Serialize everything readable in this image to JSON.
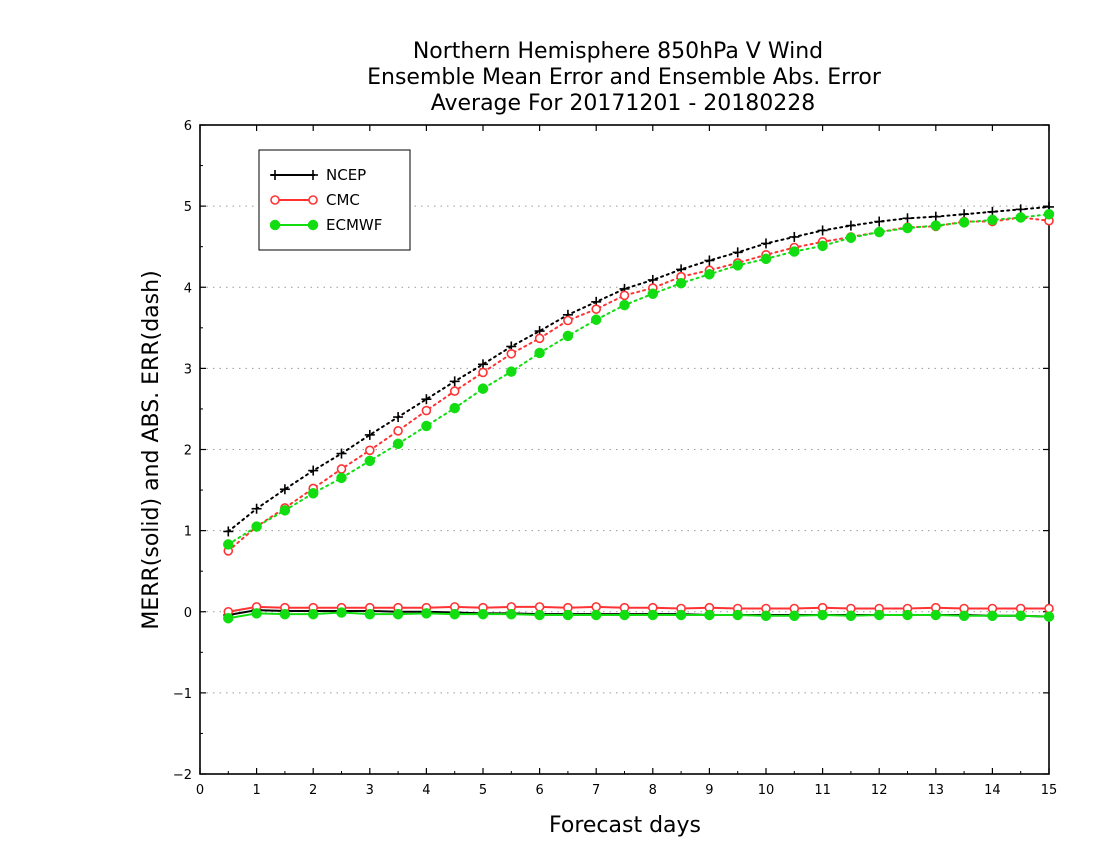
{
  "chart_data": {
    "type": "line",
    "title_lines": [
      "Northern Hemisphere 850hPa V Wind",
      "Ensemble Mean Error and Ensemble Abs. Error",
      "Average For 20171201 - 20180228"
    ],
    "xlabel": "Forecast days",
    "ylabel": "MERR(solid) and ABS. ERR(dash)",
    "xlim": [
      0,
      15
    ],
    "ylim": [
      -2,
      6
    ],
    "x_ticks": [
      0,
      1,
      2,
      3,
      4,
      5,
      6,
      7,
      8,
      9,
      10,
      11,
      12,
      13,
      14,
      15
    ],
    "y_ticks": [
      -2,
      -1,
      0,
      1,
      2,
      3,
      4,
      5,
      6
    ],
    "y_tick_labels": [
      "−2",
      "−1",
      "0",
      "1",
      "2",
      "3",
      "4",
      "5",
      "6"
    ],
    "grid": "horizontal dotted",
    "legend_position": "top-left",
    "x": [
      0.5,
      1,
      1.5,
      2,
      2.5,
      3,
      3.5,
      4,
      4.5,
      5,
      5.5,
      6,
      6.5,
      7,
      7.5,
      8,
      8.5,
      9,
      9.5,
      10,
      10.5,
      11,
      11.5,
      12,
      12.5,
      13,
      13.5,
      14,
      14.5,
      15
    ],
    "series": [
      {
        "name": "NCEP",
        "color": "#000000",
        "marker": "plus",
        "abs_err": [
          0.99,
          1.27,
          1.51,
          1.74,
          1.95,
          2.18,
          2.4,
          2.62,
          2.84,
          3.05,
          3.27,
          3.46,
          3.66,
          3.82,
          3.98,
          4.09,
          4.22,
          4.33,
          4.43,
          4.54,
          4.62,
          4.7,
          4.76,
          4.81,
          4.85,
          4.87,
          4.9,
          4.93,
          4.96,
          4.99
        ],
        "mean_err": [
          -0.04,
          0.02,
          0.01,
          0.01,
          0.01,
          0.01,
          0.0,
          0.0,
          -0.01,
          -0.02,
          -0.02,
          -0.03,
          -0.03,
          -0.03,
          -0.03,
          -0.03,
          -0.03,
          -0.04,
          -0.04,
          -0.04,
          -0.04,
          -0.04,
          -0.04,
          -0.04,
          -0.04,
          -0.04,
          -0.04,
          -0.05,
          -0.05,
          -0.06
        ]
      },
      {
        "name": "CMC",
        "color": "#ff3333",
        "marker": "open-circle",
        "abs_err": [
          0.75,
          1.05,
          1.28,
          1.52,
          1.76,
          1.99,
          2.23,
          2.48,
          2.72,
          2.95,
          3.18,
          3.37,
          3.59,
          3.73,
          3.9,
          3.99,
          4.13,
          4.21,
          4.3,
          4.4,
          4.49,
          4.56,
          4.62,
          4.68,
          4.74,
          4.75,
          4.81,
          4.81,
          4.86,
          4.82
        ],
        "mean_err": [
          0.0,
          0.06,
          0.05,
          0.05,
          0.05,
          0.05,
          0.05,
          0.05,
          0.06,
          0.05,
          0.06,
          0.06,
          0.05,
          0.06,
          0.05,
          0.05,
          0.04,
          0.05,
          0.04,
          0.04,
          0.04,
          0.05,
          0.04,
          0.04,
          0.04,
          0.05,
          0.04,
          0.04,
          0.04,
          0.04
        ]
      },
      {
        "name": "ECMWF",
        "color": "#11dd11",
        "marker": "filled-circle",
        "abs_err": [
          0.83,
          1.05,
          1.25,
          1.46,
          1.65,
          1.86,
          2.07,
          2.29,
          2.51,
          2.75,
          2.96,
          3.19,
          3.4,
          3.6,
          3.78,
          3.92,
          4.05,
          4.16,
          4.27,
          4.35,
          4.44,
          4.51,
          4.61,
          4.68,
          4.73,
          4.76,
          4.8,
          4.83,
          4.86,
          4.9
        ],
        "mean_err": [
          -0.08,
          -0.02,
          -0.03,
          -0.03,
          -0.01,
          -0.03,
          -0.03,
          -0.02,
          -0.03,
          -0.03,
          -0.03,
          -0.04,
          -0.04,
          -0.04,
          -0.04,
          -0.04,
          -0.04,
          -0.04,
          -0.04,
          -0.05,
          -0.05,
          -0.04,
          -0.05,
          -0.04,
          -0.04,
          -0.04,
          -0.05,
          -0.05,
          -0.05,
          -0.06
        ]
      }
    ]
  }
}
